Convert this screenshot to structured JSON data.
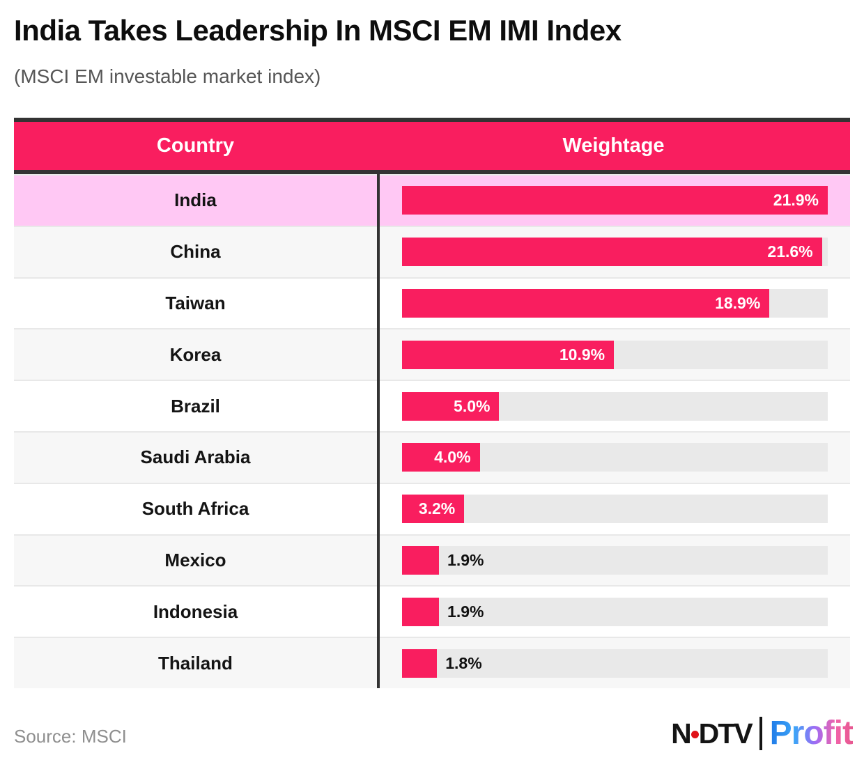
{
  "header": {
    "title": "India Takes Leadership In MSCI EM IMI Index",
    "subtitle": "(MSCI EM investable market index)"
  },
  "table": {
    "columns": [
      "Country",
      "Weightage"
    ]
  },
  "chart_data": {
    "type": "bar",
    "orientation": "horizontal",
    "title": "India Takes Leadership In MSCI EM IMI Index",
    "subtitle": "(MSCI EM investable market index)",
    "unit": "%",
    "xlim": [
      0,
      21.9
    ],
    "max_value": 21.9,
    "grid": false,
    "legend": false,
    "categories": [
      "India",
      "China",
      "Taiwan",
      "Korea",
      "Brazil",
      "Saudi Arabia",
      "South Africa",
      "Mexico",
      "Indonesia",
      "Thailand"
    ],
    "values": [
      21.9,
      21.6,
      18.9,
      10.9,
      5.0,
      4.0,
      3.2,
      1.9,
      1.9,
      1.8
    ],
    "rows": [
      {
        "country": "India",
        "value": 21.9,
        "display": "21.9%",
        "label_inside": true,
        "highlight": true
      },
      {
        "country": "China",
        "value": 21.6,
        "display": "21.6%",
        "label_inside": true,
        "highlight": false
      },
      {
        "country": "Taiwan",
        "value": 18.9,
        "display": "18.9%",
        "label_inside": true,
        "highlight": false
      },
      {
        "country": "Korea",
        "value": 10.9,
        "display": "10.9%",
        "label_inside": true,
        "highlight": false
      },
      {
        "country": "Brazil",
        "value": 5.0,
        "display": "5.0%",
        "label_inside": true,
        "highlight": false
      },
      {
        "country": "Saudi Arabia",
        "value": 4.0,
        "display": "4.0%",
        "label_inside": true,
        "highlight": false
      },
      {
        "country": "South Africa",
        "value": 3.2,
        "display": "3.2%",
        "label_inside": true,
        "highlight": false
      },
      {
        "country": "Mexico",
        "value": 1.9,
        "display": "1.9%",
        "label_inside": false,
        "highlight": false
      },
      {
        "country": "Indonesia",
        "value": 1.9,
        "display": "1.9%",
        "label_inside": false,
        "highlight": false
      },
      {
        "country": "Thailand",
        "value": 1.8,
        "display": "1.8%",
        "label_inside": false,
        "highlight": false
      }
    ],
    "colors": {
      "bar": "#F91E5F",
      "track": "#E9E9E9",
      "header_background": "#F91E5F",
      "highlight_row": "#FFC8F4",
      "zebra_row": "#F7F7F7",
      "divider": "#333333"
    }
  },
  "footer": {
    "source": "Source: MSCI",
    "logo": {
      "ndtv_n": "N",
      "ndtv_dtv": "DTV",
      "profit": "Profit"
    }
  }
}
